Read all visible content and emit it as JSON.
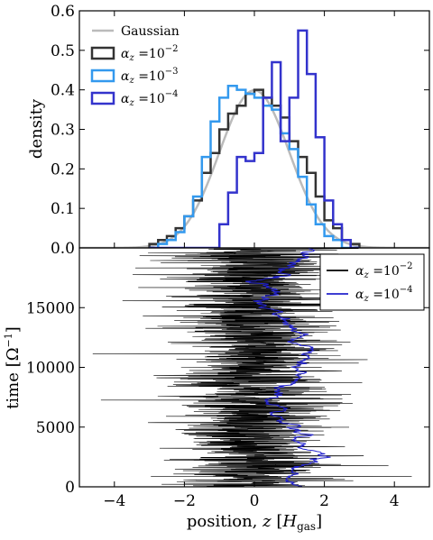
{
  "chart_data": [
    {
      "type": "histogram",
      "ylabel": "density",
      "xlim": [
        -5,
        5
      ],
      "ylim": [
        0,
        0.6
      ],
      "yticks": [
        "0.0",
        "0.1",
        "0.2",
        "0.3",
        "0.4",
        "0.5",
        "0.6"
      ],
      "legend_position": "upper-left",
      "gaussian": {
        "name": "Gaussian",
        "color": "#bbbbbb",
        "mean": 0,
        "sigma": 1
      },
      "bin_edges": [
        -3.0,
        -2.75,
        -2.5,
        -2.25,
        -2.0,
        -1.75,
        -1.5,
        -1.25,
        -1.0,
        -0.75,
        -0.5,
        -0.25,
        0.0,
        0.25,
        0.5,
        0.75,
        1.0,
        1.25,
        1.5,
        1.75,
        2.0,
        2.25,
        2.5,
        2.75,
        3.0
      ],
      "series": [
        {
          "name_prefix": "α",
          "name_sub": "z",
          "name_mid": " =10",
          "name_sup": "−2",
          "color": "#333333",
          "values": [
            0.01,
            0.02,
            0.03,
            0.05,
            0.08,
            0.12,
            0.19,
            0.24,
            0.3,
            0.34,
            0.36,
            0.39,
            0.4,
            0.38,
            0.36,
            0.33,
            0.27,
            0.23,
            0.19,
            0.13,
            0.07,
            0.05,
            0.02,
            0.01
          ]
        },
        {
          "name_prefix": "α",
          "name_sub": "z",
          "name_mid": " =10",
          "name_sup": "−3",
          "color": "#3399ee",
          "values": [
            0.0,
            0.01,
            0.02,
            0.04,
            0.08,
            0.13,
            0.23,
            0.32,
            0.38,
            0.41,
            0.4,
            0.39,
            0.38,
            0.36,
            0.35,
            0.29,
            0.25,
            0.18,
            0.11,
            0.06,
            0.03,
            0.02,
            0.0,
            0.0
          ]
        },
        {
          "name_prefix": "α",
          "name_sub": "z",
          "name_mid": " =10",
          "name_sup": "−4",
          "color": "#3333cc",
          "values": [
            0.0,
            0.0,
            0.0,
            0.0,
            0.0,
            0.0,
            0.0,
            0.0,
            0.06,
            0.14,
            0.23,
            0.22,
            0.24,
            0.38,
            0.47,
            0.27,
            0.38,
            0.55,
            0.44,
            0.28,
            0.12,
            0.06,
            0.02,
            0.0
          ]
        }
      ]
    },
    {
      "type": "line",
      "xlabel_prefix": "position, ",
      "xlabel_var": "z",
      "xlabel_mid": " [",
      "xlabel_var2": "H",
      "xlabel_sub": "gas",
      "xlabel_suffix": "]",
      "ylabel_prefix": "time [Ω",
      "ylabel_sup": "−1",
      "ylabel_suffix": "]",
      "xlim": [
        -5,
        5
      ],
      "ylim": [
        0,
        20000
      ],
      "xticks": [
        "−4",
        "−2",
        "0",
        "2",
        "4"
      ],
      "yticks": [
        "0",
        "5000",
        "10000",
        "15000"
      ],
      "legend_position": "upper-right",
      "series": [
        {
          "name_prefix": "α",
          "name_sub": "z",
          "name_mid": " =10",
          "name_sup": "−2",
          "color": "#000000",
          "center": 0.0,
          "spread": 2.2,
          "samples": 1400,
          "seed": 11
        },
        {
          "name_prefix": "α",
          "name_sub": "z",
          "name_mid": " =10",
          "name_sup": "−4",
          "color": "#2222cc",
          "center": 1.0,
          "spread": 0.55,
          "samples": 500,
          "seed": 7
        }
      ]
    }
  ]
}
